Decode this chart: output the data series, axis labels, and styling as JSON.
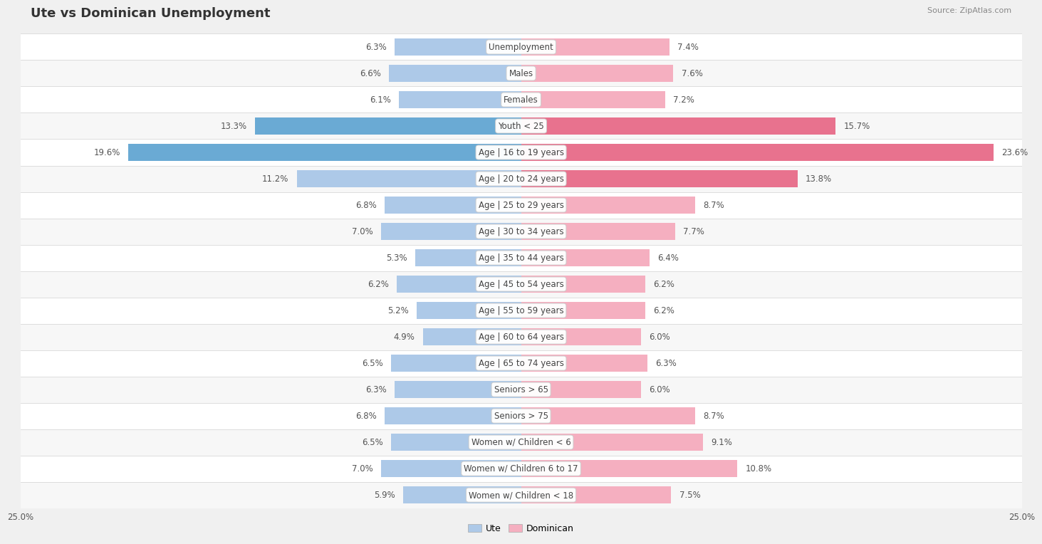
{
  "title": "Ute vs Dominican Unemployment",
  "source": "Source: ZipAtlas.com",
  "categories": [
    "Unemployment",
    "Males",
    "Females",
    "Youth < 25",
    "Age | 16 to 19 years",
    "Age | 20 to 24 years",
    "Age | 25 to 29 years",
    "Age | 30 to 34 years",
    "Age | 35 to 44 years",
    "Age | 45 to 54 years",
    "Age | 55 to 59 years",
    "Age | 60 to 64 years",
    "Age | 65 to 74 years",
    "Seniors > 65",
    "Seniors > 75",
    "Women w/ Children < 6",
    "Women w/ Children 6 to 17",
    "Women w/ Children < 18"
  ],
  "ute_values": [
    6.3,
    6.6,
    6.1,
    13.3,
    19.6,
    11.2,
    6.8,
    7.0,
    5.3,
    6.2,
    5.2,
    4.9,
    6.5,
    6.3,
    6.8,
    6.5,
    7.0,
    5.9
  ],
  "dominican_values": [
    7.4,
    7.6,
    7.2,
    15.7,
    23.6,
    13.8,
    8.7,
    7.7,
    6.4,
    6.2,
    6.2,
    6.0,
    6.3,
    6.0,
    8.7,
    9.1,
    10.8,
    7.5
  ],
  "ute_color_normal": "#adc9e8",
  "ute_color_highlight": "#6aaad4",
  "dominican_color_normal": "#f5afc0",
  "dominican_color_highlight": "#e8728e",
  "highlight_threshold": 12.0,
  "axis_max": 25.0,
  "bg_color": "#f0f0f0",
  "row_bg_even": "#ffffff",
  "row_bg_odd": "#f7f7f7",
  "label_color": "#444444",
  "value_color": "#555555",
  "title_color": "#333333",
  "source_color": "#888888",
  "legend_ute": "Ute",
  "legend_dominican": "Dominican",
  "separator_color": "#dddddd",
  "title_fontsize": 13,
  "label_fontsize": 8.5,
  "value_fontsize": 8.5,
  "legend_fontsize": 9,
  "bar_height": 0.65
}
